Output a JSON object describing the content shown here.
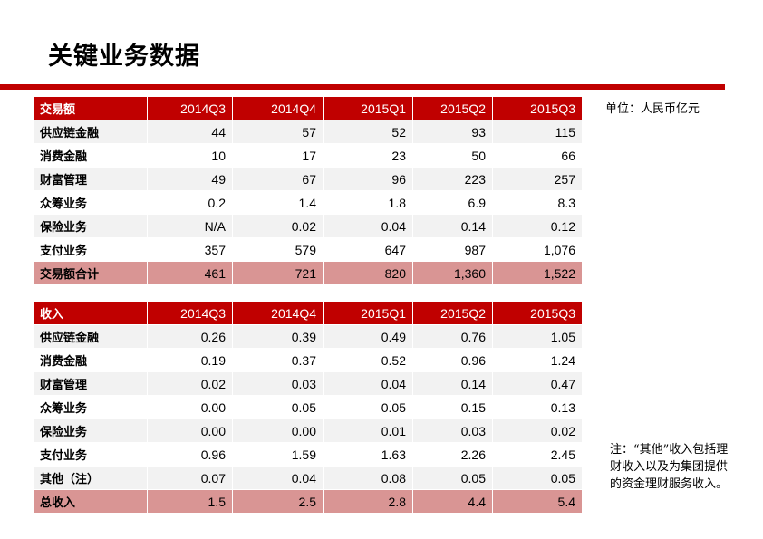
{
  "title": "关键业务数据",
  "unit_note": "单位：人民币亿元",
  "footnote": "注：“其他”收入包括理财收入以及为集团提供的资金理财服务收入。",
  "transaction_table": {
    "header": [
      "交易额",
      "2014Q3",
      "2014Q4",
      "2015Q1",
      "2015Q2",
      "2015Q3"
    ],
    "rows": [
      [
        "供应链金融",
        "44",
        "57",
        "52",
        "93",
        "115"
      ],
      [
        "消费金融",
        "10",
        "17",
        "23",
        "50",
        "66"
      ],
      [
        "财富管理",
        "49",
        "67",
        "96",
        "223",
        "257"
      ],
      [
        "众筹业务",
        "0.2",
        "1.4",
        "1.8",
        "6.9",
        "8.3"
      ],
      [
        "保险业务",
        "N/A",
        "0.02",
        "0.04",
        "0.14",
        "0.12"
      ],
      [
        "支付业务",
        "357",
        "579",
        "647",
        "987",
        "1,076"
      ]
    ],
    "total": [
      "交易额合计",
      "461",
      "721",
      "820",
      "1,360",
      "1,522"
    ]
  },
  "revenue_table": {
    "header": [
      "收入",
      "2014Q3",
      "2014Q4",
      "2015Q1",
      "2015Q2",
      "2015Q3"
    ],
    "rows": [
      [
        "供应链金融",
        "0.26",
        "0.39",
        "0.49",
        "0.76",
        "1.05"
      ],
      [
        "消费金融",
        "0.19",
        "0.37",
        "0.52",
        "0.96",
        "1.24"
      ],
      [
        "财富管理",
        "0.02",
        "0.03",
        "0.04",
        "0.14",
        "0.47"
      ],
      [
        "众筹业务",
        "0.00",
        "0.05",
        "0.05",
        "0.15",
        "0.13"
      ],
      [
        "保险业务",
        "0.00",
        "0.00",
        "0.01",
        "0.03",
        "0.02"
      ],
      [
        "支付业务",
        "0.96",
        "1.59",
        "1.63",
        "2.26",
        "2.45"
      ],
      [
        "其他（注）",
        "0.07",
        "0.04",
        "0.08",
        "0.05",
        "0.05"
      ]
    ],
    "total": [
      "总收入",
      "1.5",
      "2.5",
      "2.8",
      "4.4",
      "5.4"
    ]
  },
  "colors": {
    "header_red": "#c00000",
    "total_row": "#d99594",
    "striped_row": "#f2f2f2"
  }
}
